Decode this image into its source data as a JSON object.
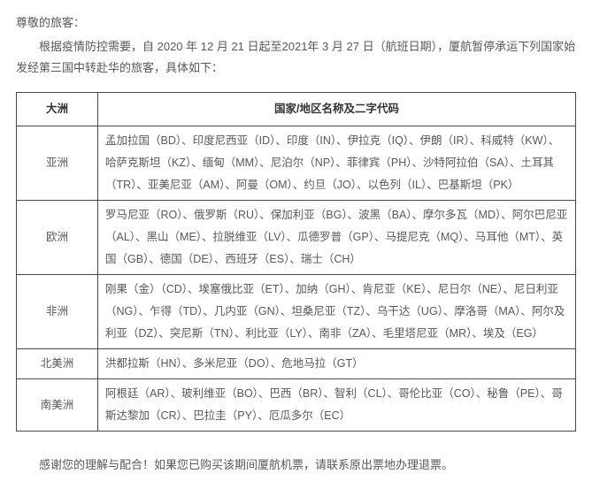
{
  "salutation": "尊敬的旅客：",
  "intro": "根据疫情防控需要，自 2020 年 12 月 21 日起至2021年 3 月 27 日（航班日期），厦航暂停承运下列国家始发经第三国中转赴华的旅客，具体如下：",
  "table": {
    "headers": {
      "continent": "大洲",
      "countries": "国家/地区名称及二字代码"
    },
    "rows": [
      {
        "continent": "亚洲",
        "countries": "孟加拉国（BD）、印度尼西亚（ID）、印度（IN）、伊拉克（IQ）、伊朗（IR）、科威特（KW）、哈萨克斯坦（KZ）、缅甸（MM）、尼泊尔（NP）、菲律宾（PH）、沙特阿拉伯（SA）、土耳其（TR）、亚美尼亚（AM）、阿曼（OM）、约旦（JO）、以色列（IL）、巴基斯坦（PK）"
      },
      {
        "continent": "欧洲",
        "countries": "罗马尼亚（RO）、俄罗斯（RU）、保加利亚（BG）、波黑（BA）、摩尔多瓦（MD）、阿尔巴尼亚（AL）、黑山（ME）、拉脱维亚（LV）、瓜德罗普（GP）、马提尼克（MQ）、马耳他（MT）、英国（GB）、德国（DE）、西班牙（ES）、瑞士（CH）"
      },
      {
        "continent": "非洲",
        "countries": "刚果（金）（CD）、埃塞俄比亚（ET）、加纳（GH）、肯尼亚（KE）、尼日尔（NE）、尼日利亚（NG）、乍得（TD）、几内亚（GN）、坦桑尼亚（TZ）、乌干达（UG）、摩洛哥（MA）、阿尔及利亚（DZ）、突尼斯（TN）、利比亚（LY）、南非（ZA）、毛里塔尼亚（MR）、埃及（EG）"
      },
      {
        "continent": "北美洲",
        "countries": "洪都拉斯（HN）、多米尼亚（DO）、危地马拉（GT）"
      },
      {
        "continent": "南美洲",
        "countries": "阿根廷（AR）、玻利维亚（BO）、巴西（BR）、智利（CL）、哥伦比亚（CO）、秘鲁（PE）、哥斯达黎加（CR）、巴拉圭（PY）、厄瓜多尔（EC）"
      }
    ]
  },
  "footer": "感谢您的理解与配合！如果您已购买该期间厦航机票，请联系原出票地办理退票。"
}
